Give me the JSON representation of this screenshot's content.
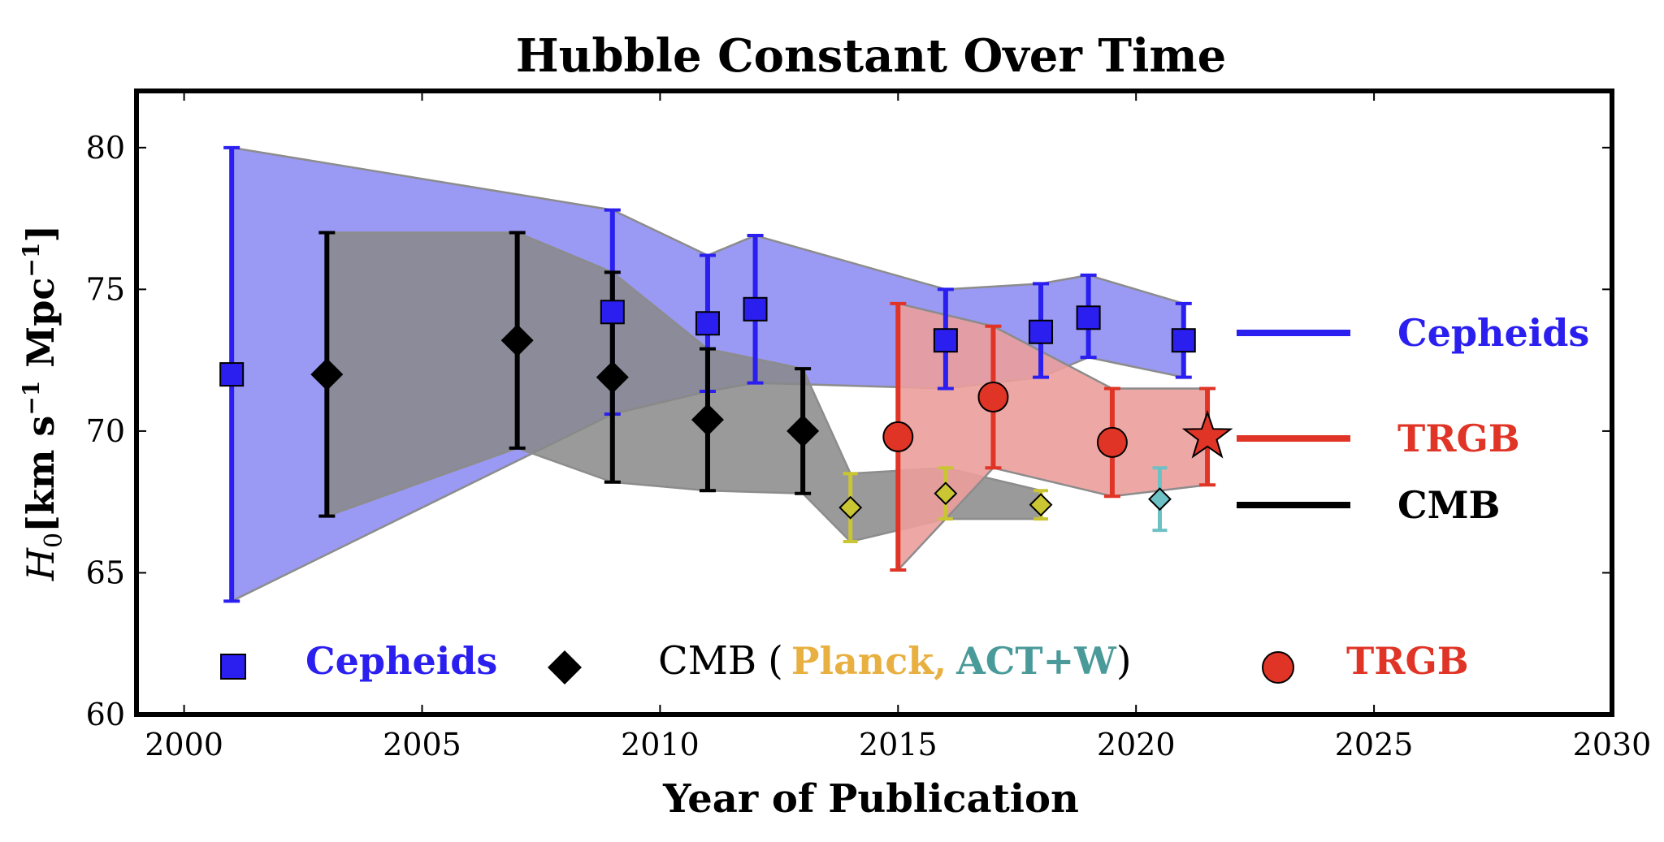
{
  "chart_data": {
    "type": "scatter",
    "title": "Hubble Constant Over Time",
    "xlabel": "Year of Publication",
    "ylabel_main": "H",
    "ylabel_sub": "0",
    "ylabel_units": "[km s",
    "ylabel_units_sup1": "−1",
    "ylabel_units_mid": " Mpc",
    "ylabel_units_sup2": "−1",
    "ylabel_units_end": "]",
    "xlim": [
      1999,
      2030
    ],
    "ylim": [
      60,
      82
    ],
    "xticks": [
      2000,
      2005,
      2010,
      2015,
      2020,
      2025,
      2030
    ],
    "yticks": [
      60,
      65,
      70,
      75,
      80
    ],
    "grid": false,
    "colors": {
      "cepheids": "#2b1ff0",
      "cepheids_band": "#9a99f4",
      "trgb": "#e03426",
      "trgb_band": "#eb9f9c",
      "cmb": "#000000",
      "cmb_band": "#888888",
      "planck": "#c9c533",
      "act": "#6dc0c4",
      "planck_text": "#e8b040",
      "act_text": "#4a9a9a"
    },
    "bands": [
      {
        "series": "Cepheids",
        "upper": [
          [
            2001,
            80
          ],
          [
            2009,
            77.8
          ],
          [
            2011,
            76.2
          ],
          [
            2012,
            76.9
          ],
          [
            2016,
            75
          ],
          [
            2018,
            75.2
          ],
          [
            2019,
            75.5
          ],
          [
            2021,
            74.5
          ]
        ],
        "lower": [
          [
            2001,
            64
          ],
          [
            2009,
            70.6
          ],
          [
            2011,
            71.4
          ],
          [
            2012,
            71.7
          ],
          [
            2016,
            71.5
          ],
          [
            2018,
            71.9
          ],
          [
            2019,
            72.6
          ],
          [
            2021,
            71.9
          ]
        ]
      },
      {
        "series": "CMB",
        "upper": [
          [
            2003,
            77
          ],
          [
            2007,
            77
          ],
          [
            2009,
            75.6
          ],
          [
            2011,
            72.9
          ],
          [
            2013,
            72.2
          ],
          [
            2014,
            68.5
          ],
          [
            2016,
            68.7
          ],
          [
            2018,
            67.9
          ]
        ],
        "lower": [
          [
            2003,
            67
          ],
          [
            2007,
            69.4
          ],
          [
            2009,
            68.2
          ],
          [
            2011,
            67.9
          ],
          [
            2013,
            67.8
          ],
          [
            2014,
            66.1
          ],
          [
            2016,
            66.9
          ],
          [
            2018,
            66.9
          ]
        ]
      },
      {
        "series": "TRGB",
        "upper": [
          [
            2015,
            74.5
          ],
          [
            2017,
            73.7
          ],
          [
            2019.5,
            71.5
          ],
          [
            2021.5,
            71.5
          ]
        ],
        "lower": [
          [
            2015,
            65.1
          ],
          [
            2017,
            68.7
          ],
          [
            2019.5,
            67.7
          ],
          [
            2021.5,
            68.1
          ]
        ]
      }
    ],
    "series": [
      {
        "name": "Cepheids",
        "marker": "square",
        "points": [
          {
            "x": 2001,
            "y": 72.0,
            "lo": 64.0,
            "hi": 80.0
          },
          {
            "x": 2009,
            "y": 74.2,
            "lo": 70.6,
            "hi": 77.8
          },
          {
            "x": 2011,
            "y": 73.8,
            "lo": 71.4,
            "hi": 76.2
          },
          {
            "x": 2012,
            "y": 74.3,
            "lo": 71.7,
            "hi": 76.9
          },
          {
            "x": 2016,
            "y": 73.2,
            "lo": 71.5,
            "hi": 75.0
          },
          {
            "x": 2018,
            "y": 73.5,
            "lo": 71.9,
            "hi": 75.2
          },
          {
            "x": 2019,
            "y": 74.0,
            "lo": 72.6,
            "hi": 75.5
          },
          {
            "x": 2021,
            "y": 73.2,
            "lo": 71.9,
            "hi": 74.5
          }
        ]
      },
      {
        "name": "CMB",
        "marker": "diamond",
        "points": [
          {
            "x": 2003,
            "y": 72.0,
            "lo": 67.0,
            "hi": 77.0
          },
          {
            "x": 2007,
            "y": 73.2,
            "lo": 69.4,
            "hi": 77.0
          },
          {
            "x": 2009,
            "y": 71.9,
            "lo": 68.2,
            "hi": 75.6
          },
          {
            "x": 2011,
            "y": 70.4,
            "lo": 67.9,
            "hi": 72.9
          },
          {
            "x": 2013,
            "y": 70.0,
            "lo": 67.8,
            "hi": 72.2
          }
        ]
      },
      {
        "name": "Planck",
        "marker": "small-diamond",
        "points": [
          {
            "x": 2014,
            "y": 67.3,
            "lo": 66.1,
            "hi": 68.5
          },
          {
            "x": 2016,
            "y": 67.8,
            "lo": 66.9,
            "hi": 68.7
          },
          {
            "x": 2018,
            "y": 67.4,
            "lo": 66.9,
            "hi": 67.9
          }
        ]
      },
      {
        "name": "ACT+W",
        "marker": "small-diamond",
        "points": [
          {
            "x": 2020.5,
            "y": 67.6,
            "lo": 66.5,
            "hi": 68.7
          }
        ]
      },
      {
        "name": "TRGB",
        "marker": "circle",
        "points": [
          {
            "x": 2015,
            "y": 69.8,
            "lo": 65.1,
            "hi": 74.5
          },
          {
            "x": 2017,
            "y": 71.2,
            "lo": 68.7,
            "hi": 73.7
          },
          {
            "x": 2019.5,
            "y": 69.6,
            "lo": 67.7,
            "hi": 71.5
          }
        ]
      },
      {
        "name": "TRGB",
        "marker": "star",
        "points": [
          {
            "x": 2021.5,
            "y": 69.8,
            "lo": 68.1,
            "hi": 71.5
          }
        ]
      }
    ],
    "legend_right": [
      {
        "label": "Cepheids",
        "color": "#2b1ff0"
      },
      {
        "label": "TRGB",
        "color": "#e03426"
      },
      {
        "label": "CMB",
        "color": "#000000"
      }
    ],
    "legend_bottom": {
      "cepheids": "Cepheids",
      "cmb": "CMB",
      "paren_open": "(",
      "planck": "Planck,",
      "act": "ACT+W",
      "paren_close": ")",
      "trgb": "TRGB"
    }
  }
}
